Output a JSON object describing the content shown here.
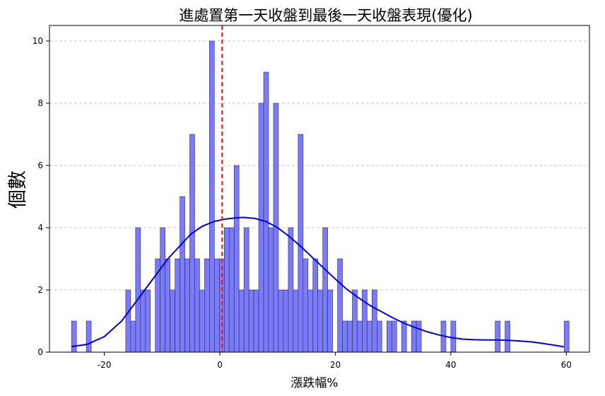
{
  "chart_data": {
    "type": "bar",
    "title": "進處置第一天收盤到最後一天收盤表現(優化)",
    "xlabel": "漲跌幅%",
    "ylabel": "個數",
    "xlim": [
      -29.5,
      64
    ],
    "ylim": [
      0,
      10.5
    ],
    "xticks": [
      -20,
      0,
      20,
      40,
      60
    ],
    "yticks": [
      0,
      2,
      4,
      6,
      8,
      10
    ],
    "xtick_labels": [
      "-20",
      "0",
      "20",
      "40",
      "60"
    ],
    "ytick_labels": [
      "0",
      "2",
      "4",
      "6",
      "8",
      "10"
    ],
    "bin_start": -25.68,
    "bin_width": 0.853,
    "counts": [
      1,
      0,
      0,
      1,
      0,
      0,
      0,
      0,
      0,
      0,
      0,
      2,
      1,
      4,
      2,
      2,
      0,
      3,
      4,
      3,
      2,
      3,
      5,
      3,
      7,
      3,
      2,
      3,
      10,
      3,
      3,
      4,
      4,
      6,
      2,
      4,
      2,
      2,
      8,
      9,
      4,
      8,
      2,
      2,
      4,
      2,
      7,
      3,
      2,
      3,
      2,
      4,
      2,
      0,
      3,
      1,
      1,
      2,
      1,
      2,
      1,
      2,
      1,
      0,
      1,
      1,
      0,
      1,
      0,
      1,
      1,
      0,
      0,
      0,
      0,
      1,
      0,
      1,
      0,
      0,
      0,
      0,
      0,
      0,
      0,
      0,
      1,
      0,
      1,
      0,
      0,
      0,
      0,
      0,
      0,
      0,
      0,
      0,
      0,
      0,
      1
    ],
    "kde": {
      "x": [
        -25.7,
        -23,
        -20,
        -17,
        -15,
        -13,
        -11,
        -9,
        -7,
        -5,
        -3,
        -1,
        1,
        3,
        4.2,
        6,
        8,
        10,
        12,
        14,
        16,
        18,
        20,
        22,
        24,
        26,
        28,
        30,
        32,
        34,
        36,
        38,
        40,
        42,
        44,
        46,
        48,
        50,
        52,
        54,
        56,
        58,
        59.6
      ],
      "y": [
        0.18,
        0.25,
        0.5,
        1.0,
        1.5,
        2.0,
        2.5,
        3.0,
        3.4,
        3.8,
        4.05,
        4.2,
        4.28,
        4.32,
        4.33,
        4.3,
        4.2,
        4.0,
        3.72,
        3.4,
        3.05,
        2.7,
        2.35,
        2.02,
        1.75,
        1.5,
        1.3,
        1.1,
        0.92,
        0.78,
        0.65,
        0.55,
        0.47,
        0.42,
        0.4,
        0.39,
        0.39,
        0.38,
        0.36,
        0.33,
        0.28,
        0.22,
        0.17
      ]
    },
    "vline_x": 0.4,
    "colors": {
      "bar_fill": "#7b7bf8",
      "bar_edge": "#2b2b6a",
      "kde_line": "#0000e6",
      "vline": "#e01414",
      "grid": "#c8c8c8"
    },
    "grid": "y-dashed",
    "legend": "none"
  }
}
